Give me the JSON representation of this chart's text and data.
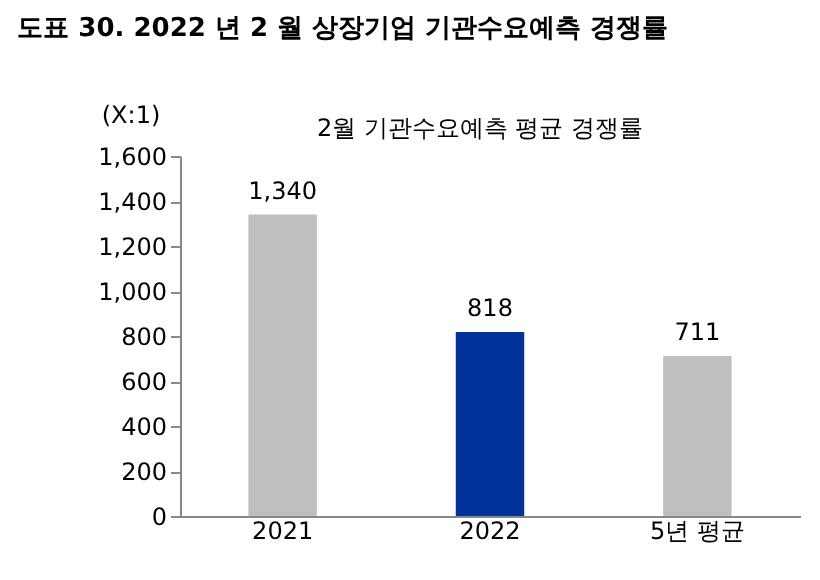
{
  "chart_data": {
    "type": "bar",
    "title": "도표 30.    2022 년 2 월 상장기업 기관수요예측 경쟁률",
    "subtitle": "2월 기관수요예측 평균 경쟁률",
    "ylabel": "(X:1)",
    "categories": [
      "2021",
      "2022",
      "5년 평균"
    ],
    "values": [
      1340,
      818,
      711
    ],
    "value_labels": [
      "1,340",
      "818",
      "711"
    ],
    "colors": [
      "#bfbfbf",
      "#003399",
      "#bfbfbf"
    ],
    "ylim": [
      0,
      1600
    ],
    "yticks": [
      0,
      200,
      400,
      600,
      800,
      {
        "value": 1000,
        "label": "1,000"
      },
      {
        "value": 1200,
        "label": "1,200"
      },
      {
        "value": 1400,
        "label": "1,400"
      },
      {
        "value": 1600,
        "label": "1,600"
      }
    ],
    "grid": false
  }
}
